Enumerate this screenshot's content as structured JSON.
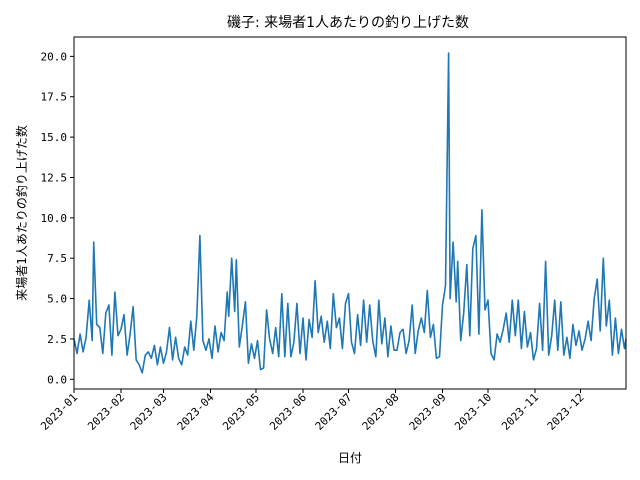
{
  "chart_data": {
    "type": "line",
    "title": "磯子: 来場者1人あたりの釣り上げた数",
    "xlabel": "日付",
    "ylabel": "来場者1人あたりの釣り上げた数",
    "x_range": [
      "2023-01-01",
      "2023-12-31"
    ],
    "ylim": [
      -0.6,
      21.2
    ],
    "x_ticks": [
      "2023-01",
      "2023-02",
      "2023-03",
      "2023-04",
      "2023-05",
      "2023-06",
      "2023-07",
      "2023-08",
      "2023-09",
      "2023-10",
      "2023-11",
      "2023-12"
    ],
    "y_ticks": [
      "0.0",
      "2.5",
      "5.0",
      "7.5",
      "10.0",
      "12.5",
      "15.0",
      "17.5",
      "20.0"
    ],
    "grid": false,
    "legend": "none",
    "color": "#1f77b4",
    "series": [
      {
        "points": [
          [
            "2023-01-01",
            2.5
          ],
          [
            "2023-01-03",
            1.6
          ],
          [
            "2023-01-05",
            2.8
          ],
          [
            "2023-01-07",
            1.7
          ],
          [
            "2023-01-09",
            2.6
          ],
          [
            "2023-01-11",
            4.9
          ],
          [
            "2023-01-13",
            2.4
          ],
          [
            "2023-01-14",
            8.5
          ],
          [
            "2023-01-16",
            3.4
          ],
          [
            "2023-01-18",
            3.2
          ],
          [
            "2023-01-20",
            1.6
          ],
          [
            "2023-01-22",
            4.1
          ],
          [
            "2023-01-24",
            4.6
          ],
          [
            "2023-01-26",
            1.5
          ],
          [
            "2023-01-28",
            5.4
          ],
          [
            "2023-01-30",
            2.7
          ],
          [
            "2023-02-01",
            3.1
          ],
          [
            "2023-02-03",
            4.0
          ],
          [
            "2023-02-05",
            1.5
          ],
          [
            "2023-02-07",
            2.8
          ],
          [
            "2023-02-09",
            4.5
          ],
          [
            "2023-02-11",
            1.2
          ],
          [
            "2023-02-13",
            0.9
          ],
          [
            "2023-02-15",
            0.4
          ],
          [
            "2023-02-17",
            1.5
          ],
          [
            "2023-02-19",
            1.7
          ],
          [
            "2023-02-21",
            1.3
          ],
          [
            "2023-02-23",
            2.1
          ],
          [
            "2023-02-25",
            0.9
          ],
          [
            "2023-02-27",
            2.0
          ],
          [
            "2023-03-01",
            1.0
          ],
          [
            "2023-03-03",
            1.7
          ],
          [
            "2023-03-05",
            3.2
          ],
          [
            "2023-03-07",
            1.2
          ],
          [
            "2023-03-09",
            2.6
          ],
          [
            "2023-03-11",
            1.3
          ],
          [
            "2023-03-13",
            0.9
          ],
          [
            "2023-03-15",
            2.0
          ],
          [
            "2023-03-17",
            1.5
          ],
          [
            "2023-03-19",
            3.6
          ],
          [
            "2023-03-21",
            1.8
          ],
          [
            "2023-03-23",
            3.9
          ],
          [
            "2023-03-25",
            8.9
          ],
          [
            "2023-03-27",
            2.4
          ],
          [
            "2023-03-29",
            1.8
          ],
          [
            "2023-03-31",
            2.5
          ],
          [
            "2023-04-02",
            1.3
          ],
          [
            "2023-04-04",
            3.3
          ],
          [
            "2023-04-06",
            1.7
          ],
          [
            "2023-04-08",
            2.9
          ],
          [
            "2023-04-10",
            2.4
          ],
          [
            "2023-04-12",
            5.4
          ],
          [
            "2023-04-13",
            3.9
          ],
          [
            "2023-04-15",
            7.5
          ],
          [
            "2023-04-17",
            4.2
          ],
          [
            "2023-04-18",
            7.4
          ],
          [
            "2023-04-20",
            2.0
          ],
          [
            "2023-04-22",
            3.3
          ],
          [
            "2023-04-24",
            4.8
          ],
          [
            "2023-04-26",
            1.0
          ],
          [
            "2023-04-28",
            2.2
          ],
          [
            "2023-04-30",
            1.3
          ],
          [
            "2023-05-02",
            2.4
          ],
          [
            "2023-05-04",
            0.6
          ],
          [
            "2023-05-06",
            0.7
          ],
          [
            "2023-05-08",
            4.3
          ],
          [
            "2023-05-10",
            2.5
          ],
          [
            "2023-05-12",
            1.6
          ],
          [
            "2023-05-14",
            3.2
          ],
          [
            "2023-05-16",
            1.4
          ],
          [
            "2023-05-18",
            5.3
          ],
          [
            "2023-05-20",
            1.4
          ],
          [
            "2023-05-22",
            4.7
          ],
          [
            "2023-05-24",
            1.4
          ],
          [
            "2023-05-26",
            2.3
          ],
          [
            "2023-05-28",
            4.7
          ],
          [
            "2023-05-30",
            1.6
          ],
          [
            "2023-06-01",
            3.8
          ],
          [
            "2023-06-03",
            1.2
          ],
          [
            "2023-06-05",
            3.7
          ],
          [
            "2023-06-07",
            2.6
          ],
          [
            "2023-06-09",
            6.1
          ],
          [
            "2023-06-11",
            2.9
          ],
          [
            "2023-06-13",
            3.9
          ],
          [
            "2023-06-15",
            2.3
          ],
          [
            "2023-06-17",
            3.6
          ],
          [
            "2023-06-19",
            1.9
          ],
          [
            "2023-06-21",
            5.3
          ],
          [
            "2023-06-23",
            3.2
          ],
          [
            "2023-06-25",
            3.8
          ],
          [
            "2023-06-27",
            1.9
          ],
          [
            "2023-06-29",
            4.7
          ],
          [
            "2023-07-01",
            5.3
          ],
          [
            "2023-07-03",
            2.3
          ],
          [
            "2023-07-05",
            1.6
          ],
          [
            "2023-07-07",
            4.0
          ],
          [
            "2023-07-09",
            2.1
          ],
          [
            "2023-07-11",
            4.9
          ],
          [
            "2023-07-13",
            2.3
          ],
          [
            "2023-07-15",
            4.6
          ],
          [
            "2023-07-17",
            2.4
          ],
          [
            "2023-07-19",
            1.4
          ],
          [
            "2023-07-21",
            4.9
          ],
          [
            "2023-07-23",
            2.2
          ],
          [
            "2023-07-25",
            3.8
          ],
          [
            "2023-07-27",
            1.4
          ],
          [
            "2023-07-29",
            3.3
          ],
          [
            "2023-07-31",
            1.8
          ],
          [
            "2023-08-02",
            1.8
          ],
          [
            "2023-08-04",
            2.9
          ],
          [
            "2023-08-06",
            3.1
          ],
          [
            "2023-08-08",
            1.6
          ],
          [
            "2023-08-10",
            2.4
          ],
          [
            "2023-08-12",
            4.6
          ],
          [
            "2023-08-14",
            1.6
          ],
          [
            "2023-08-16",
            3.0
          ],
          [
            "2023-08-18",
            3.8
          ],
          [
            "2023-08-20",
            2.9
          ],
          [
            "2023-08-22",
            5.5
          ],
          [
            "2023-08-24",
            2.6
          ],
          [
            "2023-08-26",
            3.4
          ],
          [
            "2023-08-28",
            1.3
          ],
          [
            "2023-08-30",
            1.4
          ],
          [
            "2023-09-01",
            4.6
          ],
          [
            "2023-09-03",
            5.8
          ],
          [
            "2023-09-05",
            20.2
          ],
          [
            "2023-09-06",
            5.0
          ],
          [
            "2023-09-08",
            8.5
          ],
          [
            "2023-09-10",
            4.8
          ],
          [
            "2023-09-11",
            7.3
          ],
          [
            "2023-09-13",
            2.4
          ],
          [
            "2023-09-15",
            4.1
          ],
          [
            "2023-09-17",
            7.1
          ],
          [
            "2023-09-19",
            2.7
          ],
          [
            "2023-09-21",
            8.1
          ],
          [
            "2023-09-23",
            8.9
          ],
          [
            "2023-09-25",
            2.8
          ],
          [
            "2023-09-27",
            10.5
          ],
          [
            "2023-09-29",
            4.3
          ],
          [
            "2023-10-01",
            4.9
          ],
          [
            "2023-10-03",
            1.6
          ],
          [
            "2023-10-05",
            1.2
          ],
          [
            "2023-10-07",
            2.8
          ],
          [
            "2023-10-09",
            2.3
          ],
          [
            "2023-10-11",
            3.1
          ],
          [
            "2023-10-13",
            4.1
          ],
          [
            "2023-10-15",
            2.3
          ],
          [
            "2023-10-17",
            4.9
          ],
          [
            "2023-10-19",
            2.7
          ],
          [
            "2023-10-21",
            4.9
          ],
          [
            "2023-10-23",
            1.9
          ],
          [
            "2023-10-25",
            4.2
          ],
          [
            "2023-10-27",
            2.0
          ],
          [
            "2023-10-29",
            2.9
          ],
          [
            "2023-10-31",
            1.2
          ],
          [
            "2023-11-02",
            1.9
          ],
          [
            "2023-11-04",
            4.7
          ],
          [
            "2023-11-06",
            1.8
          ],
          [
            "2023-11-08",
            7.3
          ],
          [
            "2023-11-10",
            1.5
          ],
          [
            "2023-11-12",
            2.7
          ],
          [
            "2023-11-14",
            4.9
          ],
          [
            "2023-11-16",
            1.8
          ],
          [
            "2023-11-18",
            4.8
          ],
          [
            "2023-11-20",
            1.5
          ],
          [
            "2023-11-22",
            2.6
          ],
          [
            "2023-11-24",
            1.3
          ],
          [
            "2023-11-26",
            3.4
          ],
          [
            "2023-11-28",
            2.1
          ],
          [
            "2023-11-30",
            3.0
          ],
          [
            "2023-12-02",
            1.8
          ],
          [
            "2023-12-04",
            2.5
          ],
          [
            "2023-12-06",
            3.6
          ],
          [
            "2023-12-08",
            2.4
          ],
          [
            "2023-12-10",
            5.0
          ],
          [
            "2023-12-12",
            6.2
          ],
          [
            "2023-12-14",
            3.0
          ],
          [
            "2023-12-16",
            7.5
          ],
          [
            "2023-12-18",
            3.3
          ],
          [
            "2023-12-20",
            4.9
          ],
          [
            "2023-12-22",
            1.5
          ],
          [
            "2023-12-24",
            3.8
          ],
          [
            "2023-12-26",
            1.6
          ],
          [
            "2023-12-28",
            3.1
          ],
          [
            "2023-12-30",
            1.9
          ],
          [
            "2023-12-31",
            2.5
          ]
        ]
      }
    ]
  }
}
